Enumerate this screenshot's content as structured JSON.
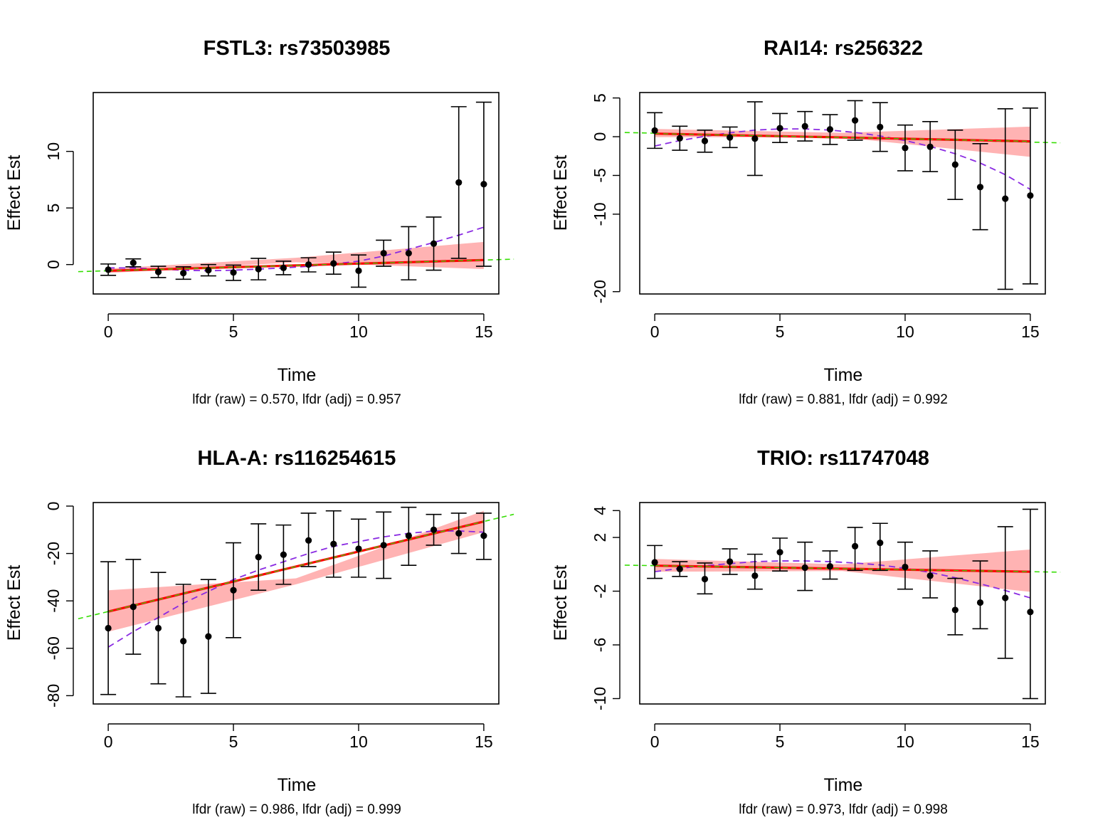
{
  "chart_data": [
    {
      "type": "scatter",
      "title": "FSTL3: rs73503985",
      "xlabel": "Time",
      "ylabel": "Effect Est",
      "subtitle": "lfdr (raw) = 0.570, lfdr (adj) = 0.957",
      "xlim": [
        -0.6,
        15.6
      ],
      "ylim": [
        -2.6,
        15.2
      ],
      "xticks": [
        "0",
        "5",
        "10",
        "15"
      ],
      "yticks": [
        "0",
        "5",
        "10"
      ],
      "x": [
        0,
        1,
        2,
        3,
        4,
        5,
        6,
        7,
        8,
        9,
        10,
        11,
        12,
        13,
        14,
        15
      ],
      "y": [
        -0.45,
        0.15,
        -0.65,
        -0.75,
        -0.5,
        -0.7,
        -0.4,
        -0.3,
        0.0,
        0.1,
        -0.55,
        1.0,
        1.0,
        1.85,
        7.25,
        7.1
      ],
      "ci_lower": [
        -0.95,
        -0.2,
        -1.15,
        -1.3,
        -1.0,
        -1.4,
        -1.35,
        -0.9,
        -0.65,
        -0.85,
        -2.0,
        -0.15,
        -1.35,
        -0.5,
        0.55,
        -0.15
      ],
      "ci_upper": [
        0.05,
        0.5,
        -0.15,
        -0.2,
        0.0,
        -0.05,
        0.55,
        0.3,
        0.6,
        1.1,
        0.85,
        2.15,
        3.35,
        4.2,
        13.95,
        14.35
      ],
      "fit_linear": {
        "start": -0.55,
        "end": 0.4
      },
      "band_lower": [
        -0.75,
        0.2,
        -0.4
      ],
      "band_upper": [
        -0.35,
        0.6,
        2.0
      ],
      "global_line": {
        "start": -0.55,
        "end": 0.4
      },
      "fit_quadratic": [
        -0.3,
        -0.3,
        -0.4,
        -0.5,
        -0.55,
        -0.5,
        -0.4,
        -0.3,
        -0.15,
        0.05,
        0.3,
        0.75,
        1.35,
        1.95,
        2.6,
        3.3
      ]
    },
    {
      "type": "scatter",
      "title": "RAI14: rs256322",
      "xlabel": "Time",
      "ylabel": "Effect Est",
      "subtitle": "lfdr (raw) = 0.881, lfdr (adj) = 0.992",
      "xlim": [
        -0.6,
        15.6
      ],
      "ylim": [
        -20.3,
        5.7
      ],
      "xticks": [
        "0",
        "5",
        "10",
        "15"
      ],
      "yticks": [
        "-20",
        "-10",
        "-5",
        "0",
        "5"
      ],
      "x": [
        0,
        1,
        2,
        3,
        4,
        5,
        6,
        7,
        8,
        9,
        10,
        11,
        12,
        13,
        14,
        15
      ],
      "y": [
        0.8,
        -0.2,
        -0.55,
        -0.1,
        -0.25,
        1.1,
        1.35,
        0.95,
        2.1,
        1.25,
        -1.45,
        -1.3,
        -3.6,
        -6.5,
        -8.0,
        -7.6
      ],
      "ci_lower": [
        -1.5,
        -1.75,
        -2.0,
        -1.4,
        -5.0,
        -0.75,
        -0.55,
        -1.0,
        -0.45,
        -1.9,
        -4.4,
        -4.5,
        -8.1,
        -12.0,
        -19.7,
        -19.0
      ],
      "ci_upper": [
        3.1,
        1.35,
        0.85,
        1.25,
        4.5,
        3.0,
        3.25,
        2.85,
        4.65,
        4.4,
        1.5,
        1.95,
        0.85,
        -0.9,
        3.6,
        3.7
      ],
      "fit_linear": {
        "start": 0.4,
        "end": -0.6
      },
      "band_lower": [
        -0.05,
        -0.1,
        -2.6
      ],
      "band_upper": [
        1.0,
        0.5,
        1.3
      ],
      "global_line": {
        "start": 0.45,
        "end": -0.7
      },
      "fit_quadratic": [
        -1.2,
        -0.5,
        0.05,
        0.5,
        0.85,
        1.0,
        1.0,
        0.85,
        0.55,
        0.1,
        -0.5,
        -1.25,
        -2.2,
        -3.4,
        -4.9,
        -6.8
      ]
    },
    {
      "type": "scatter",
      "title": "HLA-A: rs116254615",
      "xlabel": "Time",
      "ylabel": "Effect Est",
      "subtitle": "lfdr (raw) = 0.986, lfdr (adj) = 0.999",
      "xlim": [
        -0.6,
        15.6
      ],
      "ylim": [
        -83.5,
        1.5
      ],
      "xticks": [
        "0",
        "5",
        "10",
        "15"
      ],
      "yticks": [
        "-80",
        "-60",
        "-40",
        "-20",
        "0"
      ],
      "x": [
        0,
        1,
        2,
        3,
        4,
        5,
        6,
        7,
        8,
        9,
        10,
        11,
        12,
        13,
        14,
        15
      ],
      "y": [
        -51.5,
        -42.5,
        -51.5,
        -57.0,
        -55.0,
        -35.5,
        -21.5,
        -20.5,
        -14.5,
        -16.0,
        -18.0,
        -16.5,
        -12.5,
        -10.0,
        -11.5,
        -12.5
      ],
      "ci_lower": [
        -79.5,
        -62.5,
        -75.0,
        -80.5,
        -79.0,
        -55.5,
        -35.5,
        -33.0,
        -25.5,
        -30.0,
        -30.0,
        -30.5,
        -25.0,
        -16.5,
        -20.0,
        -22.5
      ],
      "ci_upper": [
        -23.5,
        -22.5,
        -28.0,
        -33.0,
        -31.0,
        -15.5,
        -7.5,
        -8.0,
        -3.0,
        -2.0,
        -5.5,
        -2.5,
        -0.5,
        -3.5,
        -3.0,
        -3.0
      ],
      "fit_linear": {
        "start": -44.5,
        "end": -6.5
      },
      "band_lower": [
        -53.0,
        -33.0,
        -11.0
      ],
      "band_upper": [
        -35.5,
        -30.5,
        -2.0
      ],
      "global_line": {
        "start": -44.5,
        "end": -6.5
      },
      "fit_quadratic": [
        -59.5,
        -53.0,
        -47.0,
        -41.0,
        -36.0,
        -31.0,
        -27.0,
        -23.5,
        -20.0,
        -17.0,
        -15.0,
        -13.0,
        -11.5,
        -10.5,
        -10.5,
        -11.0
      ]
    },
    {
      "type": "scatter",
      "title": "TRIO: rs11747048",
      "xlabel": "Time",
      "ylabel": "Effect Est",
      "subtitle": "lfdr (raw) = 0.973, lfdr (adj) = 0.998",
      "xlim": [
        -0.6,
        15.6
      ],
      "ylim": [
        -10.4,
        4.6
      ],
      "xticks": [
        "0",
        "5",
        "10",
        "15"
      ],
      "yticks": [
        "-10",
        "-6",
        "-2",
        "2",
        "4"
      ],
      "x": [
        0,
        1,
        2,
        3,
        4,
        5,
        6,
        7,
        8,
        9,
        10,
        11,
        12,
        13,
        14,
        15
      ],
      "y": [
        0.15,
        -0.35,
        -1.1,
        0.2,
        -0.85,
        0.9,
        -0.25,
        -0.15,
        1.35,
        1.6,
        -0.2,
        -0.85,
        -3.4,
        -2.85,
        -2.5,
        -3.55
      ],
      "ci_lower": [
        -1.05,
        -0.9,
        -2.2,
        -0.75,
        -1.85,
        -0.5,
        -1.95,
        -1.1,
        -0.45,
        -0.45,
        -1.85,
        -2.5,
        -5.25,
        -4.8,
        -7.0,
        -10.0
      ],
      "ci_upper": [
        1.4,
        0.2,
        0.1,
        1.15,
        0.75,
        1.95,
        1.65,
        1.0,
        2.75,
        3.05,
        1.65,
        1.0,
        -1.05,
        0.25,
        2.8,
        4.1
      ],
      "fit_linear": {
        "start": -0.1,
        "end": -0.55
      },
      "band_lower": [
        -0.55,
        -0.5,
        -2.05
      ],
      "band_upper": [
        0.4,
        0.0,
        1.1
      ],
      "global_line": {
        "start": -0.1,
        "end": -0.55
      },
      "fit_quadratic": [
        -0.55,
        -0.3,
        -0.1,
        0.05,
        0.2,
        0.25,
        0.25,
        0.2,
        0.1,
        -0.05,
        -0.3,
        -0.6,
        -1.0,
        -1.45,
        -1.95,
        -2.5
      ]
    }
  ]
}
